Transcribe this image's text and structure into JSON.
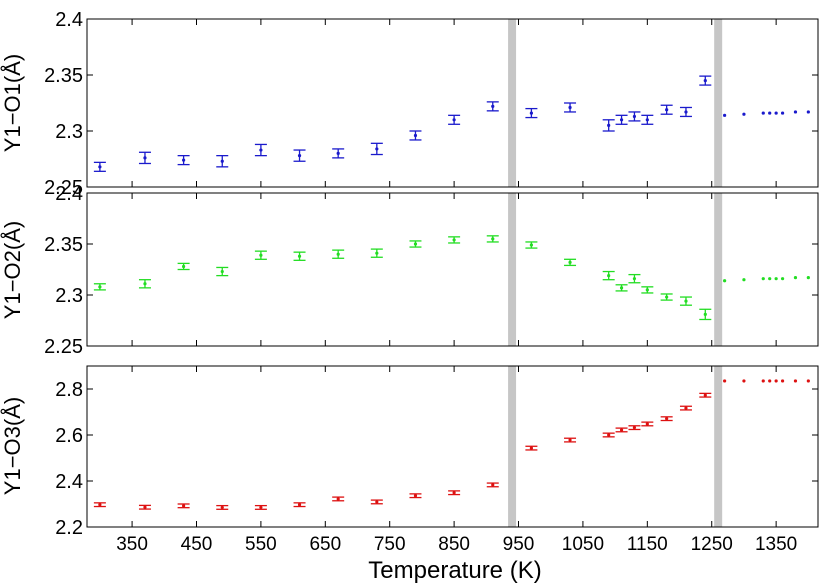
{
  "figure": {
    "xlabel": "Temperature (K)"
  },
  "chart_data": [
    {
      "type": "scatter",
      "ylabel": "Y1−O1(Å)",
      "color": "#1a1acc",
      "ylim": [
        2.25,
        2.4
      ],
      "yticks": [
        "2.25",
        "2.3",
        "2.35",
        "2.4"
      ],
      "xlim": [
        280,
        1415
      ],
      "xticks": [
        "350",
        "450",
        "550",
        "650",
        "750",
        "850",
        "950",
        "1050",
        "1150",
        "1250",
        "1350"
      ],
      "vlines": [
        940,
        1260
      ],
      "series": [
        {
          "x": [
            300,
            370,
            430,
            490,
            550,
            610,
            670,
            730,
            790,
            850,
            910,
            970,
            1030,
            1090,
            1110,
            1130,
            1150,
            1180,
            1210,
            1240
          ],
          "y": [
            2.268,
            2.276,
            2.274,
            2.273,
            2.283,
            2.278,
            2.28,
            2.284,
            2.296,
            2.31,
            2.322,
            2.316,
            2.321,
            2.305,
            2.31,
            2.313,
            2.31,
            2.319,
            2.317,
            2.345
          ],
          "err": [
            0.004,
            0.005,
            0.004,
            0.005,
            0.005,
            0.005,
            0.004,
            0.005,
            0.004,
            0.004,
            0.004,
            0.004,
            0.004,
            0.005,
            0.004,
            0.004,
            0.004,
            0.004,
            0.004,
            0.004
          ]
        },
        {
          "x": [
            1270,
            1300,
            1330,
            1340,
            1350,
            1360,
            1380,
            1400
          ],
          "y": [
            2.314,
            2.315,
            2.316,
            2.316,
            2.316,
            2.316,
            2.317,
            2.317
          ],
          "err": [
            0,
            0,
            0,
            0,
            0,
            0,
            0,
            0
          ]
        }
      ]
    },
    {
      "type": "scatter",
      "ylabel": "Y1−O2(Å)",
      "color": "#22dd22",
      "ylim": [
        2.25,
        2.4
      ],
      "yticks": [
        "2.25",
        "2.3",
        "2.35",
        "2.4"
      ],
      "xlim": [
        280,
        1415
      ],
      "xticks": [
        "350",
        "450",
        "550",
        "650",
        "750",
        "850",
        "950",
        "1050",
        "1150",
        "1250",
        "1350"
      ],
      "vlines": [
        940,
        1260
      ],
      "series": [
        {
          "x": [
            300,
            370,
            430,
            490,
            550,
            610,
            670,
            730,
            790,
            850,
            910,
            970,
            1030,
            1090,
            1110,
            1130,
            1150,
            1180,
            1210,
            1240
          ],
          "y": [
            2.308,
            2.311,
            2.328,
            2.323,
            2.339,
            2.338,
            2.34,
            2.341,
            2.35,
            2.354,
            2.355,
            2.349,
            2.332,
            2.319,
            2.307,
            2.316,
            2.305,
            2.298,
            2.294,
            2.281
          ],
          "err": [
            0.003,
            0.004,
            0.003,
            0.004,
            0.004,
            0.004,
            0.004,
            0.004,
            0.003,
            0.003,
            0.003,
            0.003,
            0.003,
            0.004,
            0.003,
            0.004,
            0.003,
            0.003,
            0.004,
            0.005
          ]
        },
        {
          "x": [
            1270,
            1300,
            1330,
            1340,
            1350,
            1360,
            1380,
            1400
          ],
          "y": [
            2.314,
            2.315,
            2.316,
            2.316,
            2.316,
            2.316,
            2.317,
            2.317
          ],
          "err": [
            0,
            0,
            0,
            0,
            0,
            0,
            0,
            0
          ]
        }
      ]
    },
    {
      "type": "scatter",
      "ylabel": "Y1−O3(Å)",
      "color": "#dd1111",
      "ylim": [
        2.2,
        2.9
      ],
      "yticks": [
        "2.2",
        "2.4",
        "2.6",
        "2.8"
      ],
      "xlim": [
        280,
        1415
      ],
      "xticks": [
        "350",
        "450",
        "550",
        "650",
        "750",
        "850",
        "950",
        "1050",
        "1150",
        "1250",
        "1350"
      ],
      "vlines": [
        940,
        1260
      ],
      "series": [
        {
          "x": [
            300,
            370,
            430,
            490,
            550,
            610,
            670,
            730,
            790,
            850,
            910,
            970,
            1030,
            1090,
            1110,
            1130,
            1150,
            1180,
            1210,
            1240
          ],
          "y": [
            2.297,
            2.286,
            2.292,
            2.285,
            2.285,
            2.297,
            2.322,
            2.309,
            2.336,
            2.349,
            2.383,
            2.543,
            2.578,
            2.6,
            2.622,
            2.632,
            2.648,
            2.671,
            2.717,
            2.773
          ],
          "err": [
            0.008,
            0.008,
            0.008,
            0.008,
            0.008,
            0.008,
            0.008,
            0.008,
            0.008,
            0.008,
            0.008,
            0.008,
            0.008,
            0.008,
            0.008,
            0.008,
            0.008,
            0.008,
            0.008,
            0.008
          ]
        },
        {
          "x": [
            1270,
            1300,
            1330,
            1340,
            1350,
            1360,
            1380,
            1400
          ],
          "y": [
            2.835,
            2.835,
            2.835,
            2.835,
            2.835,
            2.835,
            2.835,
            2.835
          ],
          "err": [
            0,
            0,
            0,
            0,
            0,
            0,
            0,
            0
          ]
        }
      ]
    }
  ]
}
